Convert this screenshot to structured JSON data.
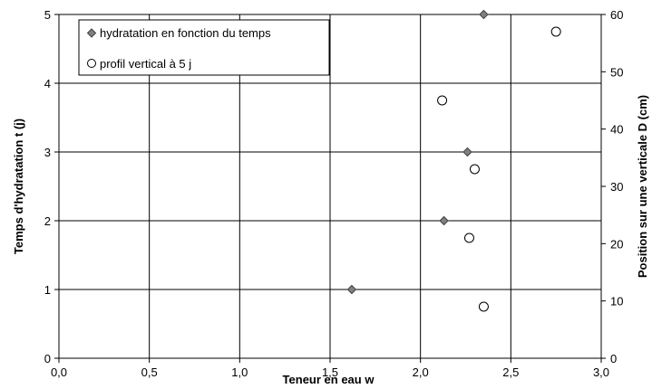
{
  "chart_data": {
    "type": "scatter",
    "xlabel": "Teneur en eau w",
    "ylabel": "Temps d'hydratation t (j)",
    "y2label": "Position sur une verticale D (cm)",
    "xlim": [
      0,
      3
    ],
    "ylim": [
      0,
      5
    ],
    "y2lim": [
      0,
      60
    ],
    "grid": true,
    "legend_position": "top-left",
    "x_ticks": [
      "0,0",
      "0,5",
      "1,0",
      "1,5",
      "2,0",
      "2,5",
      "3,0"
    ],
    "y_ticks": [
      "0",
      "1",
      "2",
      "3",
      "4",
      "5"
    ],
    "y2_ticks": [
      "0",
      "10",
      "20",
      "30",
      "40",
      "50",
      "60"
    ],
    "series": [
      {
        "name": "hydratation en fonction du temps",
        "marker": "diamond",
        "color": "#808080",
        "axis": "left",
        "points": [
          {
            "x": 1.62,
            "y": 1
          },
          {
            "x": 2.13,
            "y": 2
          },
          {
            "x": 2.26,
            "y": 3
          },
          {
            "x": 2.35,
            "y": 5
          }
        ]
      },
      {
        "name": "profil vertical à 5 j",
        "marker": "circle-open",
        "color": "#ffffff",
        "axis": "right",
        "points": [
          {
            "x": 2.35,
            "y": 9
          },
          {
            "x": 2.27,
            "y": 21
          },
          {
            "x": 2.3,
            "y": 33
          },
          {
            "x": 2.12,
            "y": 45
          },
          {
            "x": 2.75,
            "y": 57
          }
        ]
      }
    ]
  }
}
